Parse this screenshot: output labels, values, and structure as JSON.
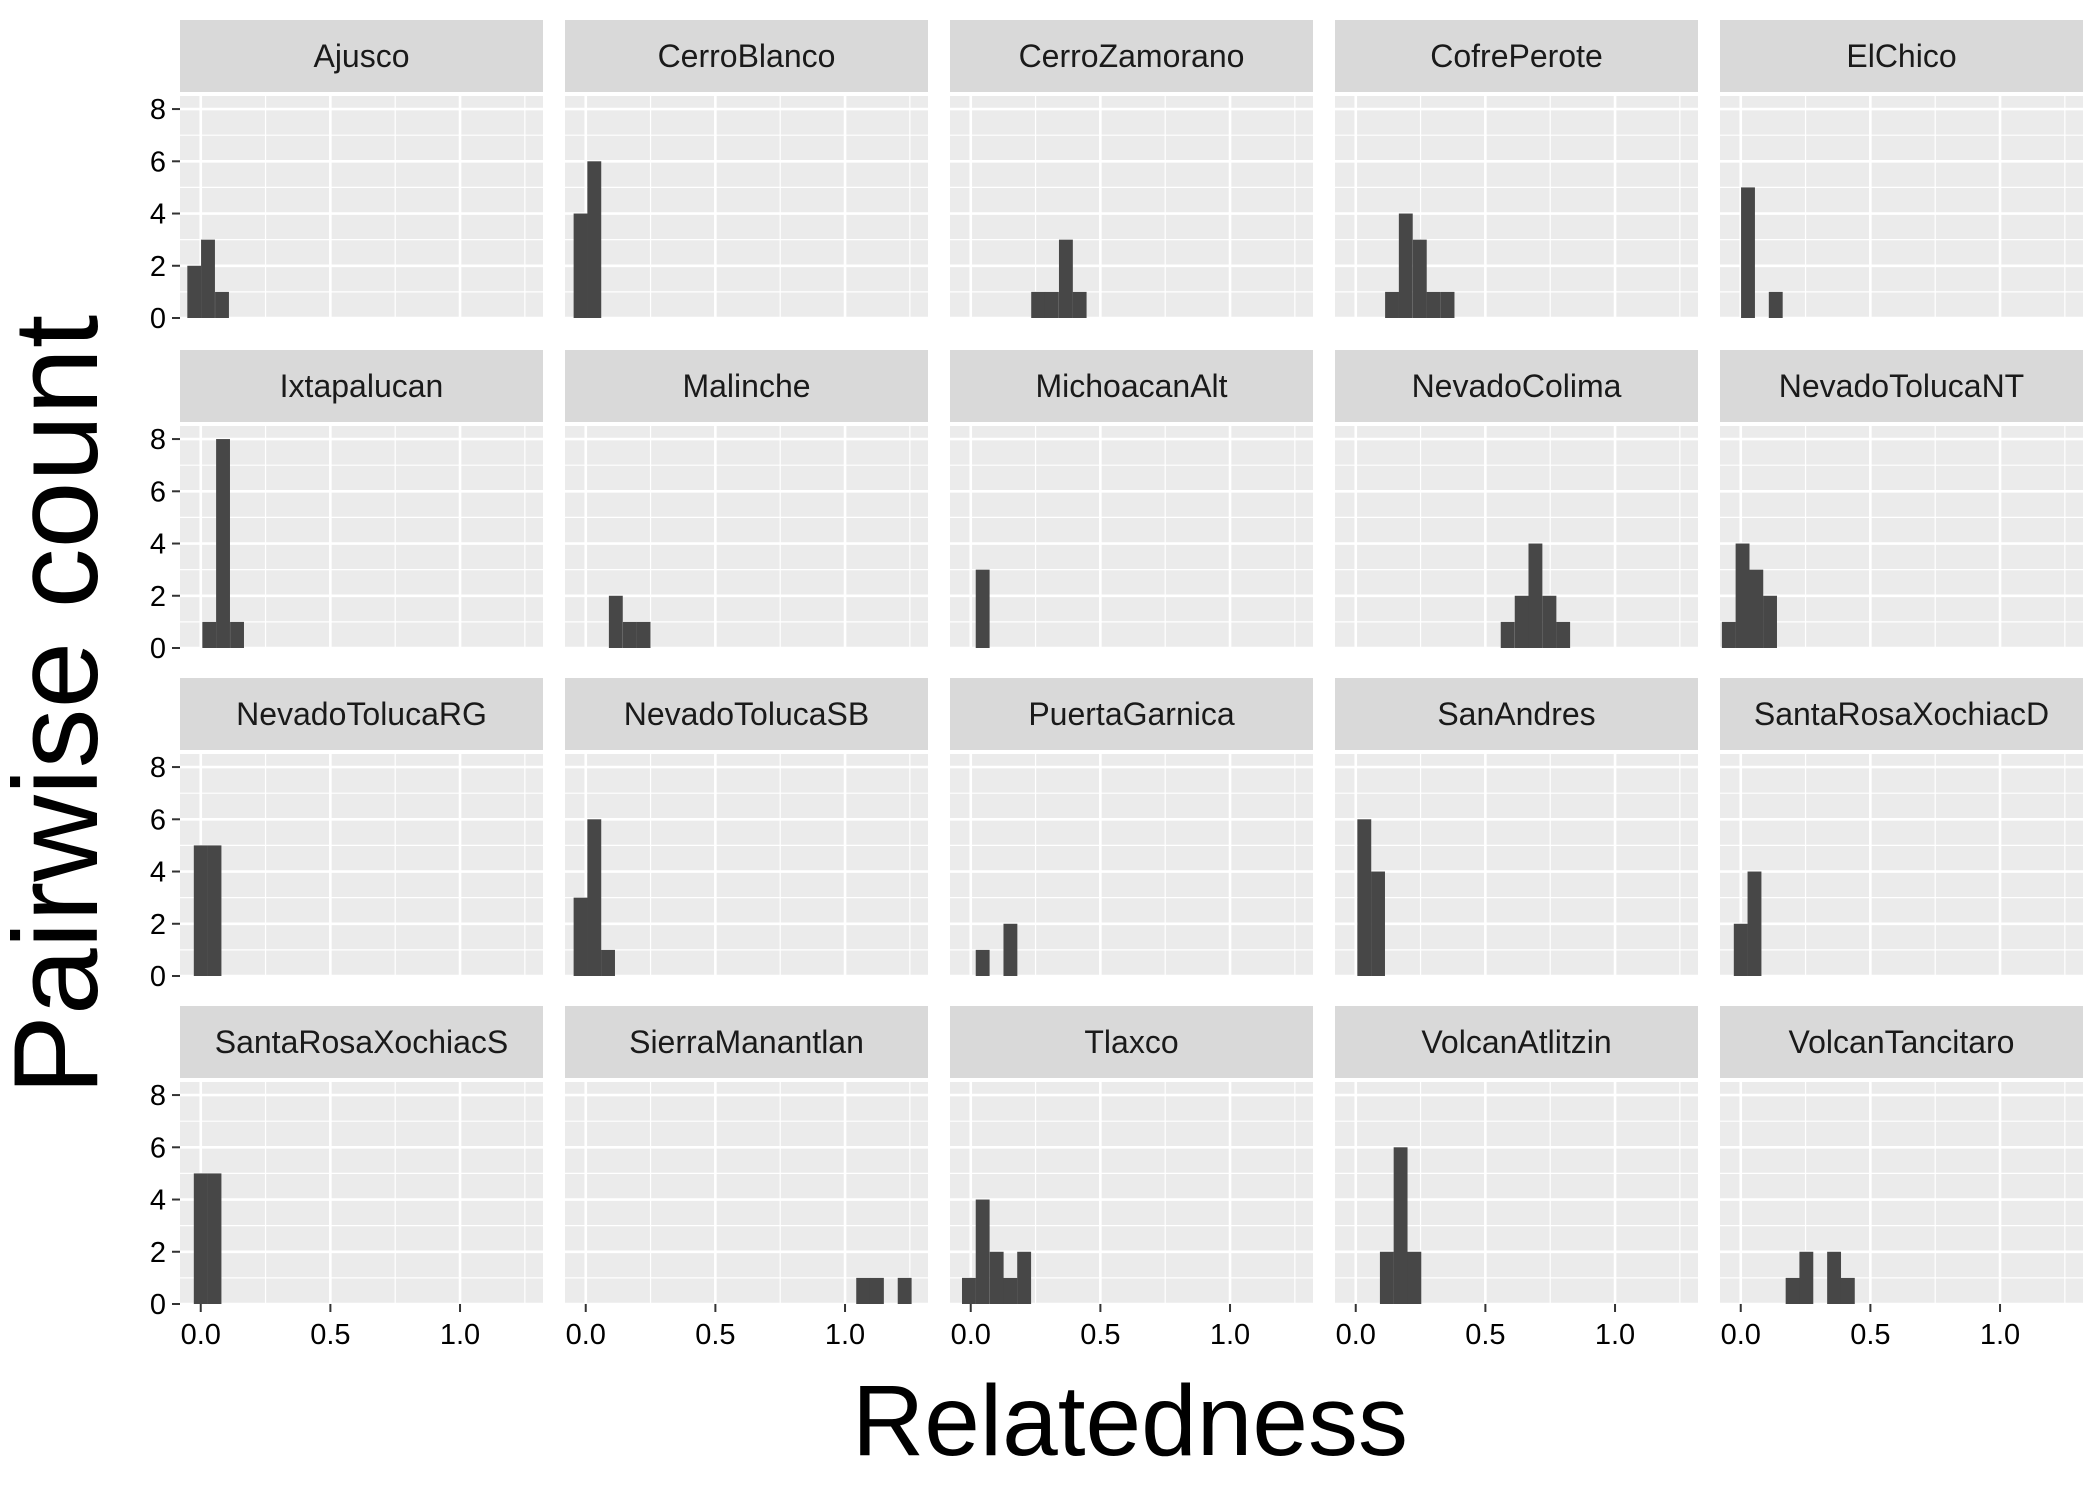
{
  "colors": {
    "panel_bg": "#ebebeb",
    "strip_bg": "#d9d9d9",
    "grid": "#ffffff",
    "bar": "#474747",
    "tick": "#333333"
  },
  "chart_data": {
    "type": "bar",
    "chart_kind": "faceted histogram",
    "title": "",
    "xlabel": "Relatedness",
    "ylabel": "Pairwise count",
    "xlim": [
      -0.08,
      1.32
    ],
    "ylim": [
      0,
      8.5
    ],
    "x_ticks": [
      "0.0",
      "0.5",
      "1.0"
    ],
    "y_ticks": [
      "0",
      "2",
      "4",
      "6",
      "8"
    ],
    "bin_width": 0.0535,
    "grid": true,
    "layout": "4 rows x 5 columns, shared axes",
    "facets": [
      {
        "name": "Ajusco",
        "bins": [
          [
            -0.025,
            2
          ],
          [
            0.028,
            3
          ],
          [
            0.082,
            1
          ]
        ]
      },
      {
        "name": "CerroBlanco",
        "bins": [
          [
            -0.02,
            4
          ],
          [
            0.033,
            6
          ]
        ]
      },
      {
        "name": "CerroZamorano",
        "bins": [
          [
            0.26,
            1
          ],
          [
            0.313,
            1
          ],
          [
            0.367,
            3
          ],
          [
            0.42,
            1
          ]
        ]
      },
      {
        "name": "CofrePerote",
        "bins": [
          [
            0.14,
            1
          ],
          [
            0.193,
            4
          ],
          [
            0.247,
            3
          ],
          [
            0.3,
            1
          ],
          [
            0.354,
            1
          ]
        ]
      },
      {
        "name": "ElChico",
        "bins": [
          [
            0.028,
            5
          ],
          [
            0.135,
            1
          ]
        ]
      },
      {
        "name": "Ixtapalucan",
        "bins": [
          [
            0.033,
            1
          ],
          [
            0.086,
            8
          ],
          [
            0.14,
            1
          ]
        ]
      },
      {
        "name": "Malinche",
        "bins": [
          [
            0.116,
            2
          ],
          [
            0.17,
            1
          ],
          [
            0.223,
            1
          ]
        ]
      },
      {
        "name": "MichoacanAlt",
        "bins": [
          [
            0.046,
            3
          ]
        ]
      },
      {
        "name": "NevadoColima",
        "bins": [
          [
            0.586,
            1
          ],
          [
            0.64,
            2
          ],
          [
            0.693,
            4
          ],
          [
            0.747,
            2
          ],
          [
            0.8,
            1
          ]
        ]
      },
      {
        "name": "NevadoTolucaNT",
        "bins": [
          [
            -0.046,
            1
          ],
          [
            0.007,
            4
          ],
          [
            0.06,
            3
          ],
          [
            0.113,
            2
          ]
        ]
      },
      {
        "name": "NevadoTolucaRG",
        "bins": [
          [
            0.0,
            5
          ],
          [
            0.053,
            5
          ]
        ]
      },
      {
        "name": "NevadoTolucaSB",
        "bins": [
          [
            -0.02,
            3
          ],
          [
            0.033,
            6
          ],
          [
            0.086,
            1
          ]
        ]
      },
      {
        "name": "PuertaGarnica",
        "bins": [
          [
            0.046,
            1
          ],
          [
            0.153,
            2
          ]
        ]
      },
      {
        "name": "SanAndres",
        "bins": [
          [
            0.033,
            6
          ],
          [
            0.086,
            4
          ]
        ]
      },
      {
        "name": "SantaRosaXochiacD",
        "bins": [
          [
            0.0,
            2
          ],
          [
            0.053,
            4
          ]
        ]
      },
      {
        "name": "SantaRosaXochiacS",
        "bins": [
          [
            0.0,
            5
          ],
          [
            0.053,
            5
          ]
        ]
      },
      {
        "name": "SierraManantlan",
        "bins": [
          [
            1.07,
            1
          ],
          [
            1.123,
            1
          ],
          [
            1.23,
            1
          ]
        ]
      },
      {
        "name": "Tlaxco",
        "bins": [
          [
            -0.007,
            1
          ],
          [
            0.046,
            4
          ],
          [
            0.1,
            2
          ],
          [
            0.153,
            1
          ],
          [
            0.206,
            2
          ]
        ]
      },
      {
        "name": "VolcanAtlitzin",
        "bins": [
          [
            0.12,
            2
          ],
          [
            0.173,
            6
          ],
          [
            0.226,
            2
          ]
        ]
      },
      {
        "name": "VolcanTancitaro",
        "bins": [
          [
            0.2,
            1
          ],
          [
            0.253,
            2
          ],
          [
            0.36,
            2
          ],
          [
            0.413,
            1
          ]
        ]
      }
    ]
  }
}
